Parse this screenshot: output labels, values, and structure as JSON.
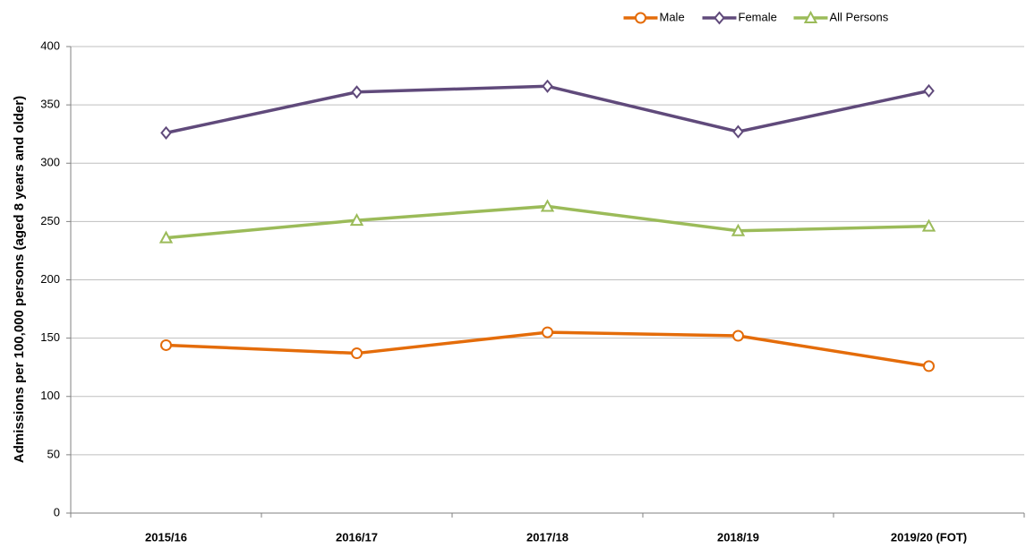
{
  "chart_data": {
    "type": "line",
    "y_label": "Admissions per 100,000 persons (aged 8 years and older)",
    "categories": [
      "2015/16",
      "2016/17",
      "2017/18",
      "2018/19",
      "2019/20 (FOT)"
    ],
    "series": [
      {
        "name": "Male",
        "color": "#e46c0a",
        "marker": "circle",
        "values": [
          144,
          137,
          155,
          152,
          126
        ]
      },
      {
        "name": "Female",
        "color": "#604a7b",
        "marker": "diamond",
        "values": [
          326,
          361,
          366,
          327,
          362
        ]
      },
      {
        "name": "All Persons",
        "color": "#9bbb59",
        "marker": "triangle",
        "values": [
          236,
          251,
          263,
          242,
          246
        ]
      }
    ],
    "ylim": [
      0,
      400
    ],
    "yticks": [
      0,
      50,
      100,
      150,
      200,
      250,
      300,
      350,
      400
    ],
    "grid": true,
    "legend": "top"
  }
}
